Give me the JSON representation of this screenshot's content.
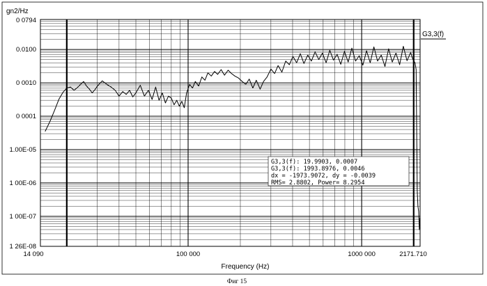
{
  "chart_data": {
    "type": "line",
    "title": "",
    "xlabel": "Frequency (Hz)",
    "ylabel": "gn2/Hz",
    "xscale": "log",
    "yscale": "log",
    "xlim": [
      14.09,
      2171.71
    ],
    "ylim": [
      1.26e-08,
      0.0794
    ],
    "grid": true,
    "legend_placement": "top-right",
    "x_tick_labels": [
      {
        "value": 14.09,
        "label": "14 090"
      },
      {
        "value": 100,
        "label": "100 000"
      },
      {
        "value": 1000,
        "label": "1000 000"
      },
      {
        "value": 2171.71,
        "label": "2171.710"
      }
    ],
    "y_tick_labels": [
      {
        "value": 0.0794,
        "label": "0 0794"
      },
      {
        "value": 0.01,
        "label": "0.0100"
      },
      {
        "value": 0.001,
        "label": "0 0010"
      },
      {
        "value": 0.0001,
        "label": "0 0001"
      },
      {
        "value": 1e-05,
        "label": "1.00E-05"
      },
      {
        "value": 1e-06,
        "label": "1 00E-06"
      },
      {
        "value": 1e-07,
        "label": "1 00E-07"
      },
      {
        "value": 1.26e-08,
        "label": "1 26E-08"
      }
    ],
    "cursor_lines_x": [
      19.9903,
      1993.8976
    ],
    "series": [
      {
        "name": "G3,3(f)",
        "color": "#000000",
        "x": [
          15,
          16,
          17,
          18,
          19,
          20,
          21,
          22,
          23,
          24,
          25,
          26,
          27,
          28,
          29,
          30,
          32,
          34,
          36,
          38,
          40,
          42,
          44,
          46,
          48,
          50,
          53,
          56,
          59,
          62,
          65,
          68,
          71,
          74,
          77,
          80,
          83,
          86,
          89,
          92,
          95,
          98,
          102,
          106,
          110,
          115,
          120,
          125,
          130,
          136,
          142,
          148,
          155,
          162,
          170,
          178,
          186,
          195,
          205,
          215,
          225,
          236,
          247,
          260,
          272,
          285,
          300,
          315,
          330,
          347,
          365,
          383,
          402,
          422,
          443,
          465,
          489,
          513,
          539,
          566,
          594,
          624,
          655,
          688,
          722,
          758,
          796,
          836,
          878,
          922,
          968,
          1016,
          1067,
          1120,
          1176,
          1235,
          1297,
          1362,
          1430,
          1501,
          1576,
          1655,
          1738,
          1825,
          1916,
          1960,
          1994,
          2030,
          2060,
          2090,
          2110,
          2130,
          2150,
          2165
        ],
        "values": [
          3.5e-05,
          7e-05,
          0.00015,
          0.00032,
          0.00052,
          0.0007,
          0.00075,
          0.0006,
          0.00072,
          0.0009,
          0.0011,
          0.0008,
          0.00065,
          0.0005,
          0.00062,
          0.0008,
          0.00115,
          0.0009,
          0.00075,
          0.0006,
          0.0004,
          0.00055,
          0.00045,
          0.0006,
          0.00038,
          0.0005,
          0.00085,
          0.0004,
          0.0006,
          0.00032,
          0.00075,
          0.0003,
          0.0005,
          0.00025,
          0.0004,
          0.00035,
          0.00022,
          0.0003,
          0.0002,
          0.00028,
          0.00018,
          0.0005,
          0.0009,
          0.0007,
          0.0011,
          0.0008,
          0.0015,
          0.0012,
          0.002,
          0.0016,
          0.0022,
          0.0018,
          0.0025,
          0.0017,
          0.0024,
          0.0019,
          0.0016,
          0.0014,
          0.0011,
          0.0009,
          0.0013,
          0.0007,
          0.0012,
          0.00065,
          0.0011,
          0.0015,
          0.0026,
          0.0019,
          0.0033,
          0.0021,
          0.0045,
          0.0035,
          0.0062,
          0.004,
          0.0075,
          0.0038,
          0.0068,
          0.0045,
          0.0085,
          0.005,
          0.0078,
          0.004,
          0.0095,
          0.0048,
          0.0072,
          0.0036,
          0.0088,
          0.0042,
          0.011,
          0.0045,
          0.0065,
          0.0034,
          0.0092,
          0.004,
          0.012,
          0.0045,
          0.0068,
          0.0031,
          0.0105,
          0.0042,
          0.0078,
          0.0035,
          0.0125,
          0.0046,
          0.0082,
          0.0055,
          0.0046,
          0.004,
          0.0025,
          6e-07,
          2e-07,
          1.4e-07,
          4e-08,
          9e-08
        ]
      }
    ]
  },
  "legend": {
    "label": "G3,3(f)"
  },
  "cursor_box": {
    "line1": "G3,3(f): 19.9903, 0.0007",
    "line2": "G3,3(f): 1993.8976, 0.0046",
    "line3": "dx = -1973.9072, dy = -0.0039",
    "line4": "RMS= 2.8802, Power= 8.2954"
  },
  "caption": "Фиг 15"
}
